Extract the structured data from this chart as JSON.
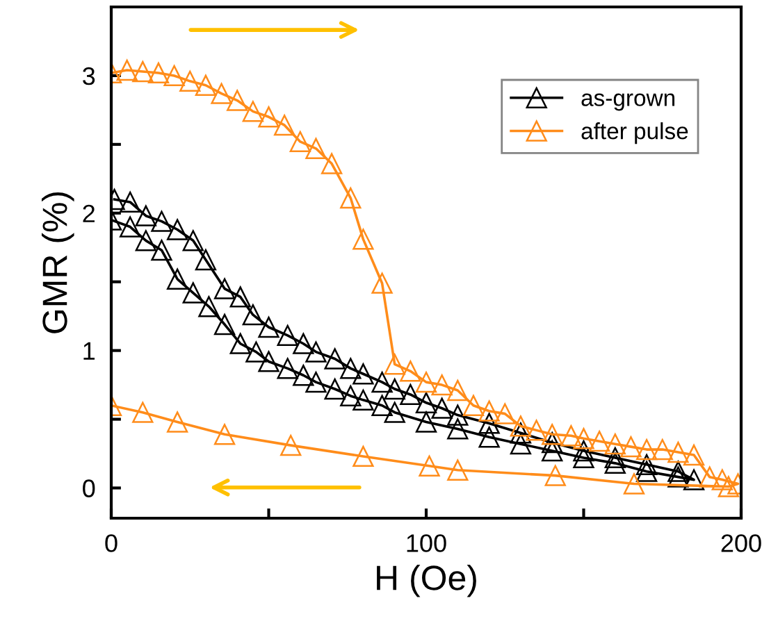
{
  "chart_data": {
    "type": "line",
    "xlabel": "H (Oe)",
    "ylabel": "GMR (%)",
    "xlim": [
      0,
      200
    ],
    "ylim": [
      -0.22,
      3.5
    ],
    "xticks": [
      0,
      {
        "value": 50,
        "label": null
      },
      100,
      {
        "value": 150,
        "label": null
      },
      200
    ],
    "yticks": [
      0,
      {
        "value": 0.5,
        "label": null
      },
      1,
      {
        "value": 1.5,
        "label": null
      },
      2,
      {
        "value": 2.5,
        "label": null
      },
      3
    ],
    "marker": "triangle",
    "line_style": "solid",
    "legend": "top right",
    "grid": false,
    "series": [
      {
        "name": "as-grown",
        "color": "#000000",
        "x": [
          0,
          6,
          11,
          16,
          21,
          26,
          31,
          36,
          41,
          46,
          50,
          56,
          61,
          65,
          71,
          76,
          80,
          86,
          90,
          100,
          110,
          120,
          130,
          140,
          150,
          160,
          170,
          180,
          185,
          180,
          170,
          160,
          150,
          140,
          130,
          120,
          110,
          105,
          100,
          95,
          90,
          86,
          80,
          76,
          71,
          65,
          61,
          56,
          50,
          45,
          41,
          36,
          30,
          26,
          21,
          16,
          11,
          6,
          1
        ],
        "values": [
          1.95,
          1.9,
          1.8,
          1.73,
          1.52,
          1.42,
          1.32,
          1.19,
          1.05,
          0.99,
          0.92,
          0.87,
          0.82,
          0.77,
          0.72,
          0.67,
          0.64,
          0.6,
          0.55,
          0.48,
          0.43,
          0.37,
          0.32,
          0.27,
          0.22,
          0.18,
          0.12,
          0.08,
          0.06,
          0.12,
          0.17,
          0.22,
          0.27,
          0.33,
          0.4,
          0.47,
          0.53,
          0.58,
          0.62,
          0.68,
          0.72,
          0.77,
          0.83,
          0.87,
          0.94,
          0.99,
          1.05,
          1.11,
          1.17,
          1.26,
          1.39,
          1.45,
          1.66,
          1.8,
          1.88,
          1.94,
          1.98,
          2.08,
          2.1
        ]
      },
      {
        "name": "after pulse",
        "color": "#ff8c1a",
        "x": [
          0,
          5,
          10,
          15,
          20,
          25,
          30,
          35,
          40,
          45,
          50,
          55,
          60,
          65,
          70,
          76,
          80,
          86,
          90,
          95,
          100,
          105,
          110,
          115,
          120,
          125,
          130,
          135,
          140,
          146,
          150,
          155,
          160,
          165,
          170,
          175,
          180,
          185,
          190,
          194,
          199,
          196,
          166,
          141,
          110,
          101,
          80,
          57,
          36,
          21,
          10,
          0
        ],
        "values": [
          3.02,
          3.04,
          3.03,
          3.02,
          3.0,
          2.96,
          2.93,
          2.87,
          2.82,
          2.74,
          2.7,
          2.64,
          2.52,
          2.47,
          2.36,
          2.11,
          1.81,
          1.49,
          0.9,
          0.85,
          0.77,
          0.75,
          0.71,
          0.6,
          0.56,
          0.54,
          0.45,
          0.42,
          0.39,
          0.38,
          0.36,
          0.34,
          0.32,
          0.3,
          0.28,
          0.28,
          0.26,
          0.24,
          0.08,
          0.06,
          0.03,
          0.01,
          0.03,
          0.09,
          0.13,
          0.16,
          0.23,
          0.31,
          0.39,
          0.48,
          0.55,
          0.6
        ]
      }
    ]
  }
}
